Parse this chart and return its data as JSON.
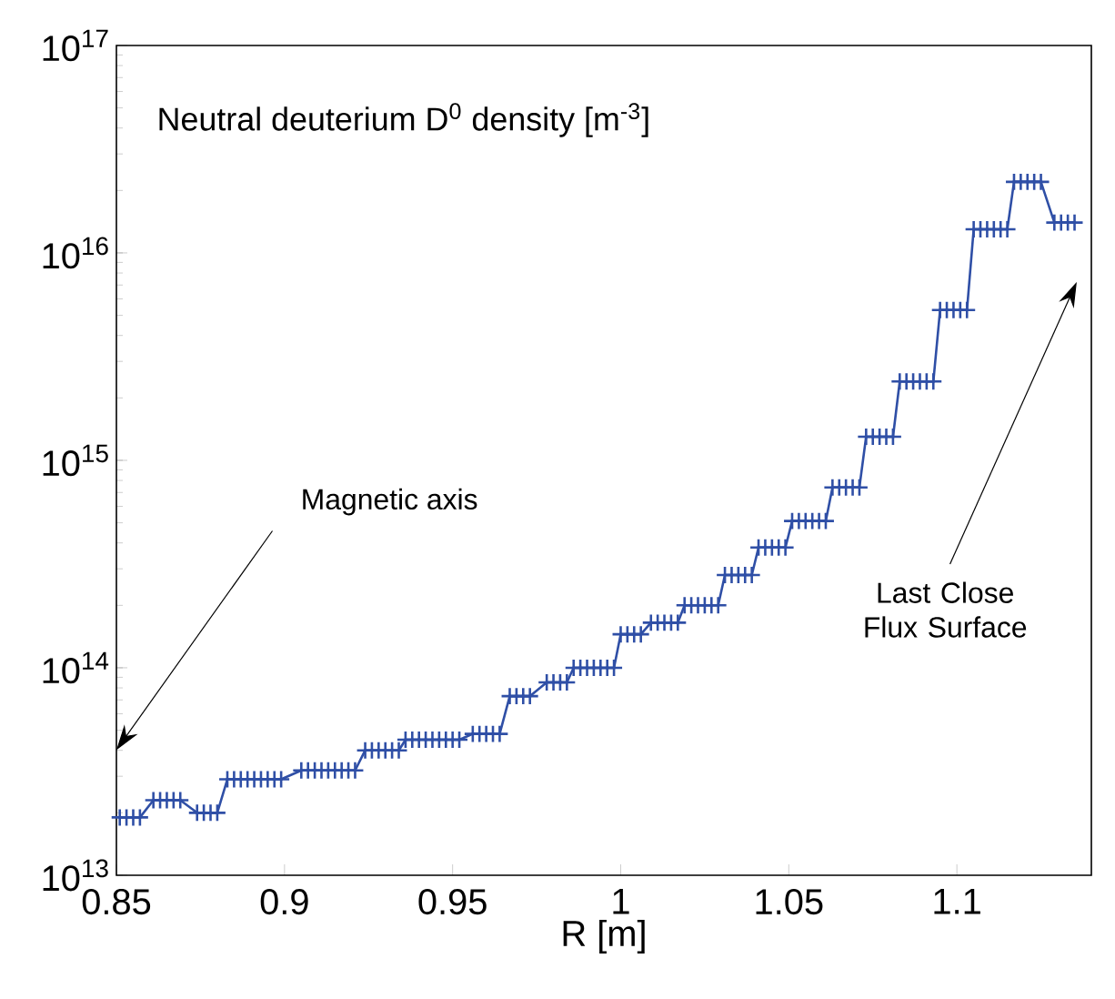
{
  "chart_data": {
    "type": "line",
    "title": "Neutral deuterium D$^{0}$ density  [m$^{-3}$]",
    "xlabel": "R [m]",
    "x": [
      0.851,
      0.853,
      0.855,
      0.857,
      0.861,
      0.863,
      0.865,
      0.867,
      0.869,
      0.874,
      0.876,
      0.878,
      0.88,
      0.883,
      0.885,
      0.887,
      0.889,
      0.891,
      0.893,
      0.895,
      0.897,
      0.899,
      0.905,
      0.907,
      0.909,
      0.911,
      0.913,
      0.915,
      0.917,
      0.919,
      0.921,
      0.924,
      0.926,
      0.928,
      0.93,
      0.932,
      0.934,
      0.936,
      0.938,
      0.94,
      0.942,
      0.944,
      0.946,
      0.948,
      0.95,
      0.952,
      0.956,
      0.958,
      0.96,
      0.962,
      0.964,
      0.967,
      0.969,
      0.971,
      0.973,
      0.978,
      0.98,
      0.982,
      0.984,
      0.986,
      0.988,
      0.99,
      0.992,
      0.994,
      0.996,
      0.998,
      1.0,
      1.002,
      1.004,
      1.006,
      1.009,
      1.011,
      1.013,
      1.015,
      1.017,
      1.019,
      1.021,
      1.023,
      1.025,
      1.027,
      1.029,
      1.031,
      1.033,
      1.035,
      1.037,
      1.039,
      1.041,
      1.043,
      1.045,
      1.047,
      1.049,
      1.051,
      1.053,
      1.055,
      1.057,
      1.059,
      1.061,
      1.063,
      1.065,
      1.067,
      1.069,
      1.071,
      1.073,
      1.075,
      1.077,
      1.079,
      1.081,
      1.083,
      1.085,
      1.087,
      1.089,
      1.091,
      1.093,
      1.095,
      1.097,
      1.099,
      1.101,
      1.103,
      1.105,
      1.107,
      1.109,
      1.111,
      1.113,
      1.115,
      1.117,
      1.119,
      1.121,
      1.123,
      1.125,
      1.129,
      1.131,
      1.133,
      1.135
    ],
    "series": [
      {
        "color": "#2f4fa6",
        "values": [
          19000000000000.0,
          19000000000000.0,
          19000000000000.0,
          19000000000000.0,
          23000000000000.0,
          23000000000000.0,
          23000000000000.0,
          23000000000000.0,
          23000000000000.0,
          20000000000000.0,
          20000000000000.0,
          20000000000000.0,
          20000000000000.0,
          29000000000000.0,
          29000000000000.0,
          29000000000000.0,
          29000000000000.0,
          29000000000000.0,
          29000000000000.0,
          29000000000000.0,
          29000000000000.0,
          29000000000000.0,
          32000000000000.0,
          32000000000000.0,
          32000000000000.0,
          32000000000000.0,
          32000000000000.0,
          32000000000000.0,
          32000000000000.0,
          32000000000000.0,
          32000000000000.0,
          40000000000000.0,
          40000000000000.0,
          40000000000000.0,
          40000000000000.0,
          40000000000000.0,
          40000000000000.0,
          45000000000000.0,
          45000000000000.0,
          45000000000000.0,
          45000000000000.0,
          45000000000000.0,
          45000000000000.0,
          45000000000000.0,
          45000000000000.0,
          45000000000000.0,
          48000000000000.0,
          48000000000000.0,
          48000000000000.0,
          48000000000000.0,
          48000000000000.0,
          73000000000000.0,
          73000000000000.0,
          73000000000000.0,
          73000000000000.0,
          85000000000000.0,
          85000000000000.0,
          85000000000000.0,
          85000000000000.0,
          100000000000000.0,
          100000000000000.0,
          100000000000000.0,
          100000000000000.0,
          100000000000000.0,
          100000000000000.0,
          100000000000000.0,
          145000000000000.0,
          145000000000000.0,
          145000000000000.0,
          145000000000000.0,
          165000000000000.0,
          165000000000000.0,
          165000000000000.0,
          165000000000000.0,
          165000000000000.0,
          200000000000000.0,
          200000000000000.0,
          200000000000000.0,
          200000000000000.0,
          200000000000000.0,
          200000000000000.0,
          280000000000000.0,
          280000000000000.0,
          280000000000000.0,
          280000000000000.0,
          280000000000000.0,
          380000000000000.0,
          380000000000000.0,
          380000000000000.0,
          380000000000000.0,
          380000000000000.0,
          510000000000000.0,
          510000000000000.0,
          510000000000000.0,
          510000000000000.0,
          510000000000000.0,
          510000000000000.0,
          740000000000000.0,
          740000000000000.0,
          740000000000000.0,
          740000000000000.0,
          740000000000000.0,
          1300000000000000.0,
          1300000000000000.0,
          1300000000000000.0,
          1300000000000000.0,
          1300000000000000.0,
          2400000000000000.0,
          2400000000000000.0,
          2400000000000000.0,
          2400000000000000.0,
          2400000000000000.0,
          2400000000000000.0,
          5300000000000000.0,
          5300000000000000.0,
          5300000000000000.0,
          5300000000000000.0,
          5300000000000000.0,
          1.3e+16,
          1.3e+16,
          1.3e+16,
          1.3e+16,
          1.3e+16,
          1.3e+16,
          2.2e+16,
          2.2e+16,
          2.2e+16,
          2.2e+16,
          2.2e+16,
          1.4e+16,
          1.4e+16,
          1.4e+16,
          1.4e+16
        ]
      }
    ],
    "log": "y",
    "marker": "cross",
    "line_style": "solid",
    "xlim": [
      0.85,
      1.14
    ],
    "ylim": [
      10000000000000.0,
      1e+17
    ],
    "xticks": [
      0.85,
      0.9,
      0.95,
      1,
      1.05,
      1.1
    ],
    "yticks": [
      {
        "value": 10000000000000.0,
        "label": "10$^{13}$"
      },
      {
        "value": 100000000000000.0,
        "label": "10$^{14}$"
      },
      {
        "value": 1000000000000000.0,
        "label": "10$^{15}$"
      },
      {
        "value": 1e+16,
        "label": "10$^{16}$"
      },
      {
        "value": 1e+17,
        "label": "10$^{17}$"
      }
    ],
    "annotations": [
      "Magnetic axis",
      "Last Close Flux Surface"
    ]
  }
}
